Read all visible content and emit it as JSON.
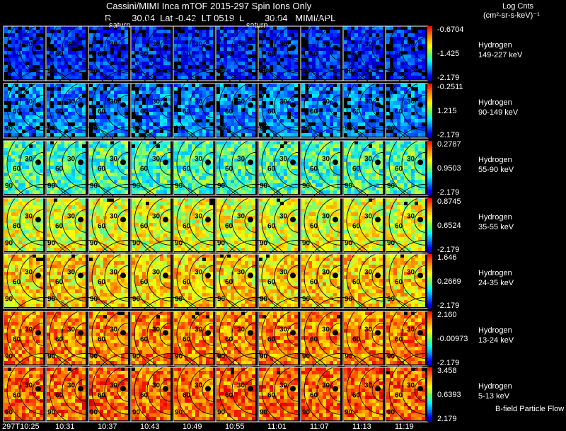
{
  "header": {
    "title": "Cassini/MIMI Inca mTOF  2015-297   Spin   Ions Only",
    "subtitle": "R        30.04  Lat -0.42  LT 0519  L        30.04   MIMI/APL",
    "units_line1": "Log Cnts",
    "units_line2": "(cm²-sr-s-keV)⁻¹",
    "saturn_labels": [
      "saturn",
      "saturn"
    ]
  },
  "footer": {
    "note": "B-field Particle Flow",
    "times": [
      "297T10:25",
      "10:31",
      "10:37",
      "10:43",
      "10:49",
      "10:55",
      "11:01",
      "11:07",
      "11:13",
      "11:19"
    ]
  },
  "chart_data": {
    "type": "heatmap",
    "columns": [
      "297T10:25",
      "10:31",
      "10:37",
      "10:43",
      "10:49",
      "10:55",
      "11:01",
      "11:07",
      "11:13",
      "11:19"
    ],
    "rings": [
      "30",
      "60",
      "90"
    ],
    "rows": [
      {
        "species": "Hydrogen",
        "energy": "149-227 keV",
        "cb_top": "-0.6704",
        "cb_mid": "-1.425",
        "cb_bot": "-2.179",
        "level": 0.18
      },
      {
        "species": "Hydrogen",
        "energy": "90-149 keV",
        "cb_top": "-0.2511",
        "cb_mid": "1.215",
        "cb_bot": "-2.179",
        "level": 0.3
      },
      {
        "species": "Hydrogen",
        "energy": "55-90 keV",
        "cb_top": "0.2787",
        "cb_mid": "0.9503",
        "cb_bot": "-2.179",
        "level": 0.5
      },
      {
        "species": "Hydrogen",
        "energy": "35-55 keV",
        "cb_top": "0.8745",
        "cb_mid": "0.6524",
        "cb_bot": "-2.179",
        "level": 0.66
      },
      {
        "species": "Hydrogen",
        "energy": "24-35 keV",
        "cb_top": "1.646",
        "cb_mid": "0.2669",
        "cb_bot": "-2.179",
        "level": 0.73
      },
      {
        "species": "Hydrogen",
        "energy": "13-24 keV",
        "cb_top": "2.160",
        "cb_mid": "-0.00973",
        "cb_bot": "-2.179",
        "level": 0.83
      },
      {
        "species": "Hydrogen",
        "energy": "5-13 keV",
        "cb_top": "3.458",
        "cb_mid": "0.6393",
        "cb_bot": "2.179",
        "level": 0.86
      }
    ]
  }
}
